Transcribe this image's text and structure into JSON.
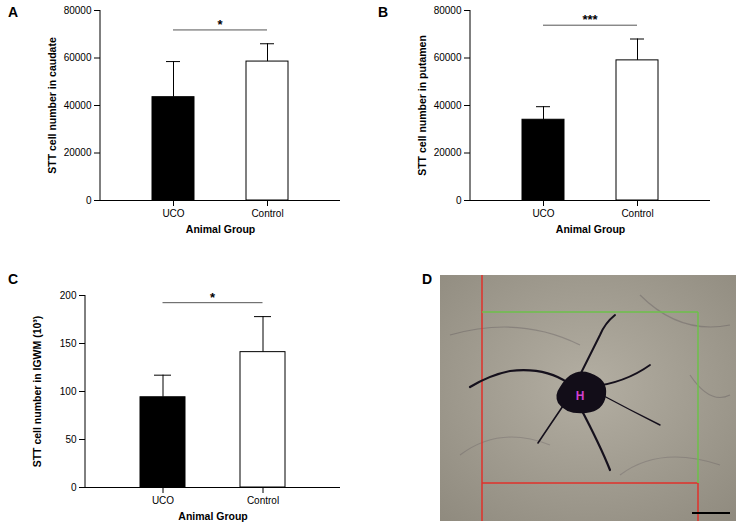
{
  "chart_data": [
    {
      "panel": "A",
      "type": "bar",
      "categories": [
        "UCO",
        "Control"
      ],
      "values": [
        43500,
        58500
      ],
      "errors": [
        15000,
        7500
      ],
      "colors": [
        "#000000",
        "#ffffff"
      ],
      "ylabel": "STT cell number in caudate",
      "xlabel": "Animal Group",
      "ylim": [
        0,
        80000
      ],
      "yticks": [
        0,
        20000,
        40000,
        60000,
        80000
      ],
      "annotations": [
        {
          "text": "*",
          "from": "UCO",
          "to": "Control"
        }
      ]
    },
    {
      "panel": "B",
      "type": "bar",
      "categories": [
        "UCO",
        "Control"
      ],
      "values": [
        34000,
        59000
      ],
      "errors": [
        5500,
        9000
      ],
      "colors": [
        "#000000",
        "#ffffff"
      ],
      "ylabel": "STT cell number in putamen",
      "xlabel": "Animal Group",
      "ylim": [
        0,
        80000
      ],
      "yticks": [
        0,
        20000,
        40000,
        60000,
        80000
      ],
      "annotations": [
        {
          "text": "***",
          "from": "UCO",
          "to": "Control"
        }
      ]
    },
    {
      "panel": "C",
      "type": "bar",
      "categories": [
        "UCO",
        "Control"
      ],
      "values": [
        94,
        141
      ],
      "errors": [
        23,
        37
      ],
      "colors": [
        "#000000",
        "#ffffff"
      ],
      "ylabel": "STT cell number in IGWM (10³)",
      "xlabel": "Animal Group",
      "ylim": [
        0,
        200
      ],
      "yticks": [
        0,
        50,
        100,
        150,
        200
      ],
      "annotations": [
        {
          "text": "*",
          "from": "UCO",
          "to": "Control"
        }
      ]
    }
  ],
  "image_panel": {
    "panel": "D",
    "label": "H"
  }
}
